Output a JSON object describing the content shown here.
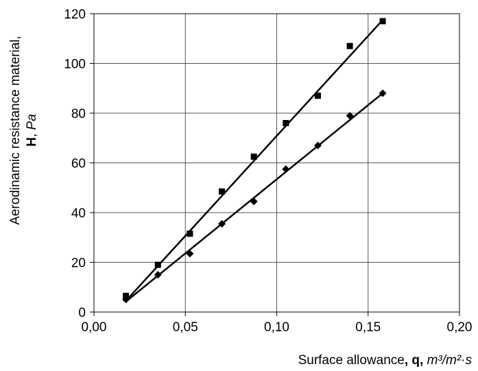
{
  "chart_data": {
    "type": "scatter",
    "x_axis": {
      "min": 0.0,
      "max": 0.2,
      "ticks": [
        0.0,
        0.05,
        0.1,
        0.15,
        0.2
      ],
      "tick_labels": [
        "0,00",
        "0,05",
        "0,10",
        "0,15",
        "0,20"
      ],
      "label": {
        "text": "Surface allowance",
        "sep1": ",",
        "symbol": "q",
        "sep2": ",",
        "unit": "m³/m²·s"
      }
    },
    "y_axis": {
      "min": 0,
      "max": 120,
      "ticks": [
        0,
        20,
        40,
        60,
        80,
        100,
        120
      ],
      "tick_labels": [
        "0",
        "20",
        "40",
        "60",
        "80",
        "100",
        "120"
      ],
      "label": {
        "line1": "Aerodinamic resistance material,",
        "symbol": "H",
        "sep": ",",
        "unit": "Pa"
      }
    },
    "grid": true,
    "legend": "none",
    "series": [
      {
        "marker": "square",
        "color": "#000000",
        "points": [
          {
            "x": 0.0175,
            "y": 6.5
          },
          {
            "x": 0.035,
            "y": 19
          },
          {
            "x": 0.0525,
            "y": 31.5
          },
          {
            "x": 0.07,
            "y": 48.5
          },
          {
            "x": 0.0875,
            "y": 62.5
          },
          {
            "x": 0.105,
            "y": 76
          },
          {
            "x": 0.1225,
            "y": 87
          },
          {
            "x": 0.14,
            "y": 107
          },
          {
            "x": 0.158,
            "y": 117
          }
        ],
        "trendline": [
          [
            0.0175,
            4.5
          ],
          [
            0.158,
            117.5
          ]
        ]
      },
      {
        "marker": "diamond",
        "color": "#000000",
        "points": [
          {
            "x": 0.0175,
            "y": 5
          },
          {
            "x": 0.035,
            "y": 15
          },
          {
            "x": 0.0525,
            "y": 23.5
          },
          {
            "x": 0.07,
            "y": 35.5
          },
          {
            "x": 0.0875,
            "y": 44.5
          },
          {
            "x": 0.105,
            "y": 57.5
          },
          {
            "x": 0.1225,
            "y": 67
          },
          {
            "x": 0.14,
            "y": 79
          },
          {
            "x": 0.158,
            "y": 88
          }
        ],
        "trendline": [
          [
            0.0175,
            4.2
          ],
          [
            0.158,
            88
          ]
        ]
      }
    ]
  }
}
